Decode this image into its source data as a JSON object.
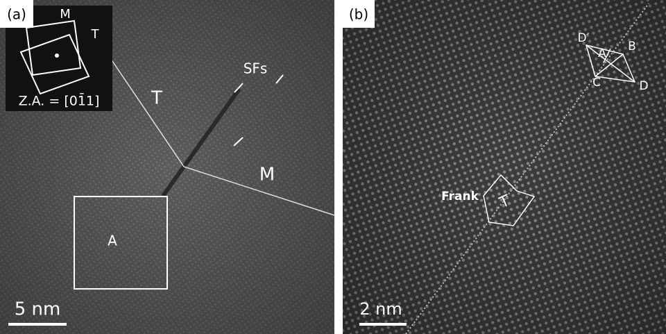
{
  "panels": [
    {
      "label": "(a)",
      "inset": {
        "labels": [
          "M",
          "T"
        ],
        "zone_axis": "Z.A. = [01̄1]"
      },
      "annotations": [
        "SFs",
        "T",
        "M",
        "A"
      ],
      "scale_bar": "5 nm"
    },
    {
      "label": "(b)",
      "annotations": [
        "D′",
        "A",
        "B",
        "C",
        "D",
        "Frank"
      ],
      "scale_bar": "2 nm"
    }
  ]
}
